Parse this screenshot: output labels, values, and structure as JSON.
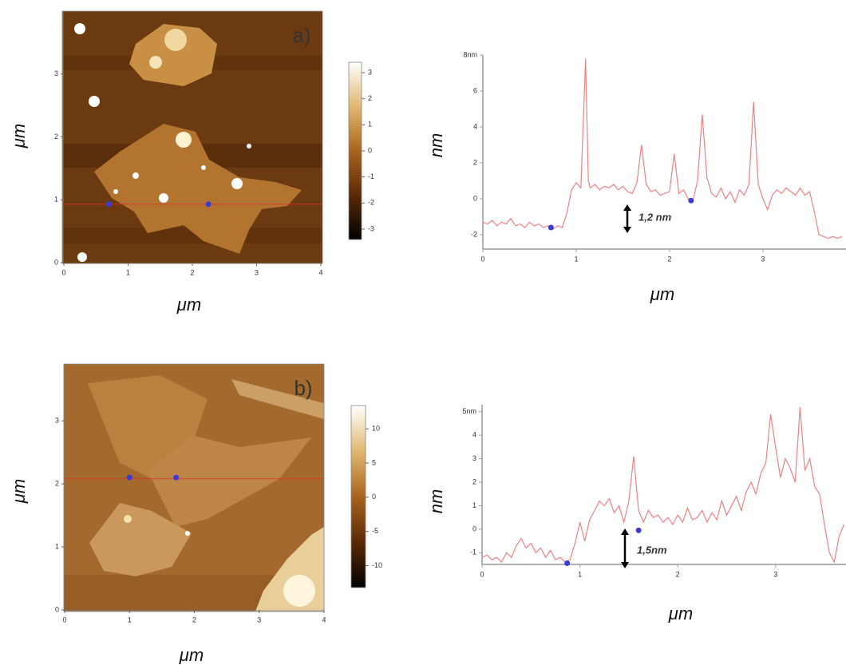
{
  "chart_data": [
    {
      "type": "image",
      "label": "a)",
      "xlabel": "μm",
      "ylabel": "μm",
      "xlim": [
        0,
        4
      ],
      "xticks": [
        0,
        1,
        2,
        3,
        4
      ],
      "ylim": [
        0,
        4
      ],
      "yticks": [
        0,
        1,
        2,
        3
      ],
      "scan_y": 0.93,
      "scan_color": "#e03030",
      "markers": {
        "x": [
          0.7,
          2.25
        ],
        "y": [
          0.93,
          0.93
        ],
        "color": "#3b3bd6"
      },
      "colorbar": {
        "clim": [
          -3.4,
          3.4
        ],
        "cticks": [
          -3,
          -2,
          -1,
          0,
          1,
          2,
          3
        ],
        "colormap": [
          "#000000",
          "#5a2a06",
          "#a8641e",
          "#e0b870",
          "#ffffff"
        ]
      }
    },
    {
      "type": "line",
      "xlabel": "μm",
      "ylabel": "nm",
      "xlim": [
        0,
        3.89
      ],
      "xticks": [
        0,
        1,
        2,
        3
      ],
      "ylim": [
        -2.8,
        8
      ],
      "yticks": [
        -2,
        0,
        2,
        4,
        6,
        {
          "value": 8,
          "label": "8nm"
        }
      ],
      "x": [
        0,
        0.05,
        0.1,
        0.15,
        0.2,
        0.25,
        0.3,
        0.35,
        0.4,
        0.45,
        0.5,
        0.55,
        0.6,
        0.65,
        0.7,
        0.75,
        0.8,
        0.85,
        0.9,
        0.95,
        1.0,
        1.05,
        1.1,
        1.13,
        1.15,
        1.2,
        1.25,
        1.3,
        1.35,
        1.4,
        1.45,
        1.5,
        1.55,
        1.6,
        1.65,
        1.7,
        1.75,
        1.8,
        1.85,
        1.9,
        1.95,
        2.0,
        2.05,
        2.1,
        2.15,
        2.2,
        2.25,
        2.3,
        2.35,
        2.4,
        2.45,
        2.5,
        2.55,
        2.6,
        2.65,
        2.7,
        2.75,
        2.8,
        2.85,
        2.9,
        2.95,
        3.0,
        3.05,
        3.1,
        3.15,
        3.2,
        3.25,
        3.3,
        3.35,
        3.4,
        3.45,
        3.5,
        3.55,
        3.6,
        3.65,
        3.7,
        3.75,
        3.8,
        3.85
      ],
      "series": [
        {
          "color": "#f08080",
          "values": [
            -1.3,
            -1.4,
            -1.2,
            -1.5,
            -1.3,
            -1.4,
            -1.1,
            -1.5,
            -1.4,
            -1.6,
            -1.3,
            -1.5,
            -1.4,
            -1.6,
            -1.5,
            -1.7,
            -1.5,
            -1.6,
            -0.8,
            0.5,
            0.9,
            0.6,
            7.8,
            1.0,
            0.6,
            0.8,
            0.5,
            0.7,
            0.6,
            0.8,
            0.5,
            0.7,
            0.4,
            0.3,
            0.9,
            3.0,
            0.8,
            0.4,
            0.5,
            0.2,
            0.3,
            0.4,
            2.5,
            0.3,
            0.5,
            0.0,
            -0.1,
            1.0,
            4.7,
            1.2,
            0.3,
            0.1,
            0.6,
            0.0,
            0.4,
            -0.2,
            0.5,
            0.2,
            0.8,
            5.4,
            0.8,
            0.0,
            -0.6,
            0.2,
            0.5,
            0.3,
            0.6,
            0.4,
            0.2,
            0.6,
            0.2,
            0.4,
            -0.7,
            -2.0,
            -2.1,
            -2.2,
            -2.1,
            -2.2,
            -2.1
          ]
        }
      ],
      "markers": {
        "x": [
          0.73,
          2.23
        ],
        "y": [
          -1.6,
          -0.1
        ],
        "color": "#3b3bd6"
      },
      "annotation": "1,2 nm"
    },
    {
      "type": "image",
      "label": "b)",
      "xlabel": "μm",
      "ylabel": "μm",
      "xlim": [
        0,
        4
      ],
      "xticks": [
        0,
        1,
        2,
        3,
        4
      ],
      "ylim": [
        0,
        3.9
      ],
      "yticks": [
        0,
        1,
        2,
        3
      ],
      "scan_y": 2.08,
      "scan_color": "#e03030",
      "markers": {
        "x": [
          1.0,
          1.72
        ],
        "y": [
          2.1,
          2.1
        ],
        "color": "#3b3bd6"
      },
      "colorbar": {
        "clim": [
          -13.2,
          13.4
        ],
        "cticks": [
          -10,
          -5,
          0,
          5,
          10
        ],
        "colormap": [
          "#000000",
          "#5a2a06",
          "#a8641e",
          "#e0b870",
          "#ffffff"
        ]
      }
    },
    {
      "type": "line",
      "xlabel": "μm",
      "ylabel": "nm",
      "xlim": [
        0,
        3.72
      ],
      "xticks": [
        0,
        1,
        2,
        3
      ],
      "ylim": [
        -1.5,
        5.3
      ],
      "yticks": [
        -1,
        0,
        1,
        2,
        3,
        4,
        {
          "value": 5,
          "label": "5nm"
        }
      ],
      "x": [
        0,
        0.05,
        0.1,
        0.15,
        0.2,
        0.25,
        0.3,
        0.35,
        0.4,
        0.45,
        0.5,
        0.55,
        0.6,
        0.65,
        0.7,
        0.75,
        0.8,
        0.85,
        0.9,
        0.95,
        1.0,
        1.05,
        1.1,
        1.15,
        1.2,
        1.25,
        1.3,
        1.35,
        1.4,
        1.45,
        1.5,
        1.55,
        1.6,
        1.65,
        1.7,
        1.75,
        1.8,
        1.85,
        1.9,
        1.95,
        2.0,
        2.05,
        2.1,
        2.15,
        2.2,
        2.25,
        2.3,
        2.35,
        2.4,
        2.45,
        2.5,
        2.55,
        2.6,
        2.65,
        2.7,
        2.75,
        2.8,
        2.85,
        2.9,
        2.95,
        3.0,
        3.05,
        3.1,
        3.15,
        3.2,
        3.25,
        3.3,
        3.35,
        3.4,
        3.45,
        3.5,
        3.55,
        3.6,
        3.65,
        3.7
      ],
      "series": [
        {
          "color": "#f08080",
          "values": [
            -1.2,
            -1.1,
            -1.3,
            -1.2,
            -1.4,
            -1.0,
            -1.2,
            -0.7,
            -0.4,
            -0.8,
            -0.6,
            -1.0,
            -0.8,
            -1.2,
            -0.9,
            -1.3,
            -1.2,
            -1.4,
            -1.3,
            -0.6,
            0.3,
            -0.5,
            0.4,
            0.8,
            1.2,
            1.0,
            1.3,
            0.7,
            1.0,
            0.3,
            1.2,
            3.1,
            0.8,
            0.3,
            0.8,
            0.5,
            0.6,
            0.3,
            0.5,
            0.2,
            0.6,
            0.3,
            0.9,
            0.4,
            0.5,
            0.8,
            0.3,
            0.7,
            0.4,
            1.2,
            0.6,
            1.0,
            1.4,
            0.8,
            1.6,
            2.0,
            1.5,
            2.4,
            2.8,
            4.9,
            3.5,
            2.2,
            3.0,
            2.6,
            2.0,
            5.2,
            2.5,
            3.0,
            1.8,
            1.5,
            0.2,
            -1.0,
            -1.4,
            -0.3,
            0.2
          ]
        }
      ],
      "markers": {
        "x": [
          0.87,
          1.6
        ],
        "y": [
          -1.45,
          -0.05
        ],
        "color": "#3b3bd6"
      },
      "annotation": "1,5nm"
    }
  ]
}
